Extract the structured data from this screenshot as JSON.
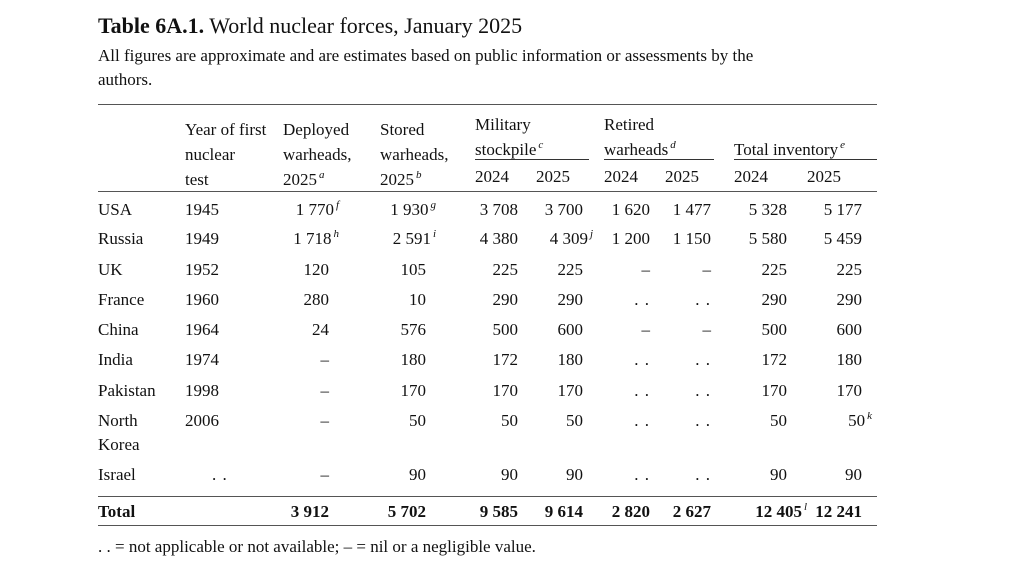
{
  "table_label": "Table 6A.1.",
  "title": "World nuclear forces, January 2025",
  "subtitle_line1": "All figures are approximate and are estimates based on public information or assessments by the",
  "subtitle_line2": "authors.",
  "headers": {
    "test_l1": "Year of first",
    "test_l2": "nuclear",
    "test_l3": "test",
    "dep_l1": "Deployed",
    "dep_l2": "warheads,",
    "dep_l3": "2025",
    "dep_sup": "a",
    "sto_l1": "Stored",
    "sto_l2": "warheads,",
    "sto_l3": "2025",
    "sto_sup": "b",
    "mil_l1": "Military",
    "mil_l2": "stockpile",
    "mil_sup": "c",
    "ret_l1": "Retired",
    "ret_l2": "warheads",
    "ret_sup": "d",
    "tot_l2": "Total inventory",
    "tot_sup": "e",
    "y2024": "2024",
    "y2025": "2025"
  },
  "rows": [
    {
      "country": "USA",
      "test": "1945",
      "deployed": "1 770",
      "deployed_sup": "f",
      "stored": "1 930",
      "stored_sup": "g",
      "mil24": "3 708",
      "mil25": "3 700",
      "mil25_sup": "",
      "ret24": "1 620",
      "ret25": "1 477",
      "tot24": "5 328",
      "tot25": "5 177",
      "tot25_sup": ""
    },
    {
      "country": "Russia",
      "test": "1949",
      "deployed": "1 718",
      "deployed_sup": "h",
      "stored": "2 591",
      "stored_sup": "i",
      "mil24": "4 380",
      "mil25": "4 309",
      "mil25_sup": "j",
      "ret24": "1 200",
      "ret25": "1 150",
      "tot24": "5 580",
      "tot25": "5 459",
      "tot25_sup": ""
    },
    {
      "country": "UK",
      "test": "1952",
      "deployed": "120",
      "deployed_sup": "",
      "stored": "105",
      "stored_sup": "",
      "mil24": "225",
      "mil25": "225",
      "mil25_sup": "",
      "ret24": "–",
      "ret25": "–",
      "tot24": "225",
      "tot25": "225",
      "tot25_sup": ""
    },
    {
      "country": "France",
      "test": "1960",
      "deployed": "280",
      "deployed_sup": "",
      "stored": "10",
      "stored_sup": "",
      "mil24": "290",
      "mil25": "290",
      "mil25_sup": "",
      "ret24": ". .",
      "ret25": ". .",
      "tot24": "290",
      "tot25": "290",
      "tot25_sup": ""
    },
    {
      "country": "China",
      "test": "1964",
      "deployed": "24",
      "deployed_sup": "",
      "stored": "576",
      "stored_sup": "",
      "mil24": "500",
      "mil25": "600",
      "mil25_sup": "",
      "ret24": "–",
      "ret25": "–",
      "tot24": "500",
      "tot25": "600",
      "tot25_sup": ""
    },
    {
      "country": "India",
      "test": "1974",
      "deployed": "–",
      "deployed_sup": "",
      "stored": "180",
      "stored_sup": "",
      "mil24": "172",
      "mil25": "180",
      "mil25_sup": "",
      "ret24": ". .",
      "ret25": ". .",
      "tot24": "172",
      "tot25": "180",
      "tot25_sup": ""
    },
    {
      "country": "Pakistan",
      "test": "1998",
      "deployed": "–",
      "deployed_sup": "",
      "stored": "170",
      "stored_sup": "",
      "mil24": "170",
      "mil25": "170",
      "mil25_sup": "",
      "ret24": ". .",
      "ret25": ". .",
      "tot24": "170",
      "tot25": "170",
      "tot25_sup": ""
    },
    {
      "country": "North",
      "country2": "Korea",
      "test": "2006",
      "deployed": "–",
      "deployed_sup": "",
      "stored": "50",
      "stored_sup": "",
      "mil24": "50",
      "mil25": "50",
      "mil25_sup": "",
      "ret24": ". .",
      "ret25": ". .",
      "tot24": "50",
      "tot25": "50",
      "tot25_sup": "k"
    },
    {
      "country": "Israel",
      "test": ". .",
      "deployed": "–",
      "deployed_sup": "",
      "stored": "90",
      "stored_sup": "",
      "mil24": "90",
      "mil25": "90",
      "mil25_sup": "",
      "ret24": ". .",
      "ret25": ". .",
      "tot24": "90",
      "tot25": "90",
      "tot25_sup": ""
    }
  ],
  "total": {
    "label": "Total",
    "deployed": "3 912",
    "stored": "5 702",
    "mil24": "9 585",
    "mil25": "9 614",
    "ret24": "2 820",
    "ret25": "2 627",
    "tot24": "12 405",
    "tot24_sup": "l",
    "tot25": "12 241"
  },
  "footnote": ". . = not applicable or not available; – = nil or a negligible value."
}
